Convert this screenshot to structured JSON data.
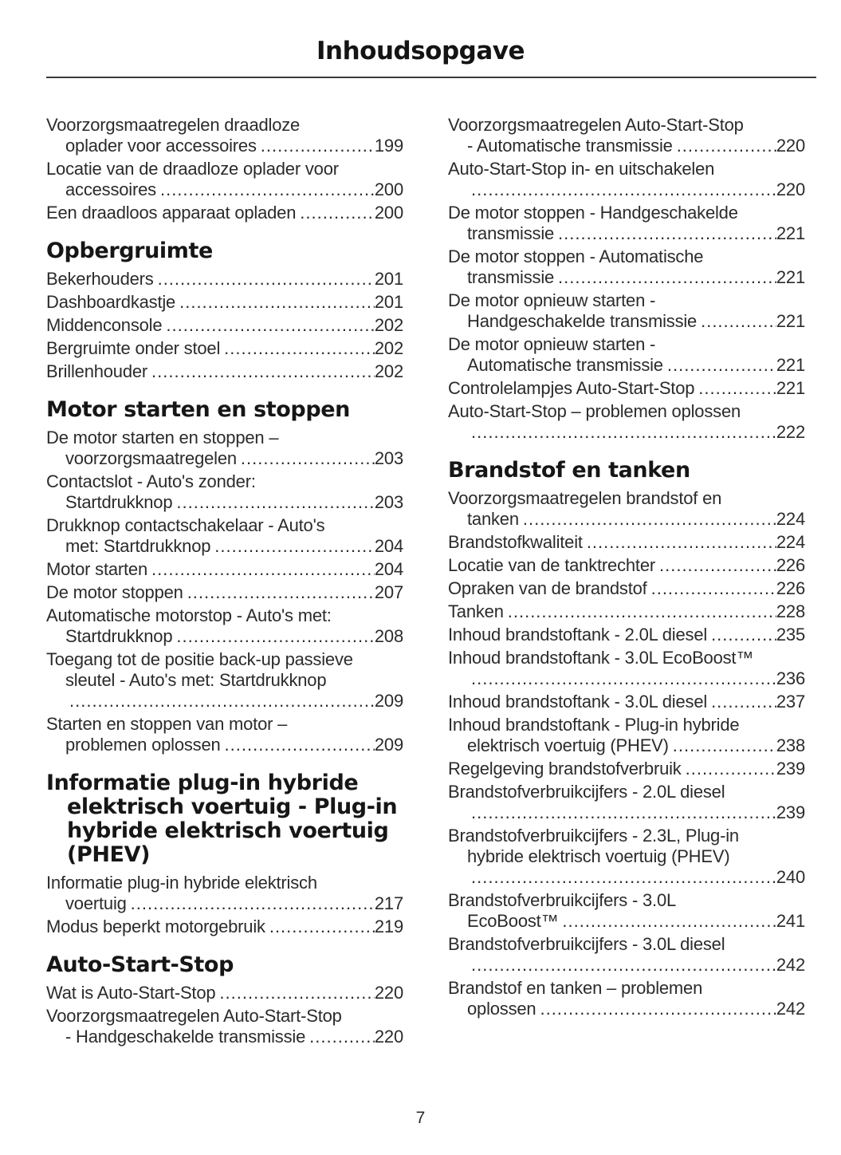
{
  "page": {
    "title": "Inhoudsopgave",
    "footer_page_number": "7"
  },
  "columns": [
    {
      "sections": [
        {
          "heading": null,
          "entries": [
            {
              "lines": [
                "Voorzorgsmaatregelen draadloze",
                "oplader voor accessoires"
              ],
              "page": "199"
            },
            {
              "lines": [
                "Locatie van de draadloze oplader voor",
                "accessoires"
              ],
              "page": "200"
            },
            {
              "lines": [
                "Een draadloos apparaat opladen"
              ],
              "page": "200"
            }
          ]
        },
        {
          "heading": [
            "Opbergruimte"
          ],
          "entries": [
            {
              "lines": [
                "Bekerhouders"
              ],
              "page": "201"
            },
            {
              "lines": [
                "Dashboardkastje"
              ],
              "page": "201"
            },
            {
              "lines": [
                "Middenconsole"
              ],
              "page": "202"
            },
            {
              "lines": [
                "Bergruimte onder stoel"
              ],
              "page": "202"
            },
            {
              "lines": [
                "Brillenhouder"
              ],
              "page": "202"
            }
          ]
        },
        {
          "heading": [
            "Motor starten en stoppen"
          ],
          "entries": [
            {
              "lines": [
                "De motor starten en stoppen –",
                "voorzorgsmaatregelen"
              ],
              "page": "203"
            },
            {
              "lines": [
                "Contactslot - Auto's zonder:",
                "Startdrukknop"
              ],
              "page": "203"
            },
            {
              "lines": [
                "Drukknop contactschakelaar - Auto's",
                "met: Startdrukknop"
              ],
              "page": "204"
            },
            {
              "lines": [
                "Motor starten"
              ],
              "page": "204"
            },
            {
              "lines": [
                "De motor stoppen"
              ],
              "page": "207"
            },
            {
              "lines": [
                "Automatische motorstop - Auto's met:",
                "Startdrukknop"
              ],
              "page": "208"
            },
            {
              "lines": [
                "Toegang tot de positie back-up passieve",
                "sleutel - Auto's met: Startdrukknop",
                ""
              ],
              "page": "209"
            },
            {
              "lines": [
                "Starten en stoppen van motor –",
                "problemen oplossen"
              ],
              "page": "209"
            }
          ]
        },
        {
          "heading": [
            "Informatie plug-in hybride",
            "elektrisch voertuig - Plug-in",
            "hybride elektrisch voertuig",
            "(PHEV)"
          ],
          "entries": [
            {
              "lines": [
                "Informatie plug-in hybride elektrisch",
                "voertuig"
              ],
              "page": "217"
            },
            {
              "lines": [
                "Modus beperkt motorgebruik"
              ],
              "page": "219"
            }
          ]
        },
        {
          "heading": [
            "Auto-Start-Stop"
          ],
          "entries": [
            {
              "lines": [
                "Wat is Auto-Start-Stop"
              ],
              "page": "220"
            },
            {
              "lines": [
                "Voorzorgsmaatregelen Auto-Start-Stop",
                "- Handgeschakelde transmissie"
              ],
              "page": "220"
            }
          ]
        }
      ]
    },
    {
      "sections": [
        {
          "heading": null,
          "entries": [
            {
              "lines": [
                "Voorzorgsmaatregelen Auto-Start-Stop",
                "- Automatische transmissie"
              ],
              "page": "220"
            },
            {
              "lines": [
                "Auto-Start-Stop in- en uitschakelen",
                ""
              ],
              "page": "220"
            },
            {
              "lines": [
                "De motor stoppen - Handgeschakelde",
                "transmissie"
              ],
              "page": "221"
            },
            {
              "lines": [
                "De motor stoppen - Automatische",
                "transmissie"
              ],
              "page": "221"
            },
            {
              "lines": [
                "De motor opnieuw starten -",
                "Handgeschakelde transmissie"
              ],
              "page": "221"
            },
            {
              "lines": [
                "De motor opnieuw starten -",
                "Automatische transmissie"
              ],
              "page": "221"
            },
            {
              "lines": [
                "Controlelampjes Auto-Start-Stop"
              ],
              "page": "221"
            },
            {
              "lines": [
                "Auto-Start-Stop – problemen oplossen",
                ""
              ],
              "page": "222"
            }
          ]
        },
        {
          "heading": [
            "Brandstof en tanken"
          ],
          "entries": [
            {
              "lines": [
                "Voorzorgsmaatregelen brandstof en",
                "tanken"
              ],
              "page": "224"
            },
            {
              "lines": [
                "Brandstofkwaliteit"
              ],
              "page": "224"
            },
            {
              "lines": [
                "Locatie van de tanktrechter"
              ],
              "page": "226"
            },
            {
              "lines": [
                "Opraken van de brandstof"
              ],
              "page": "226"
            },
            {
              "lines": [
                "Tanken"
              ],
              "page": "228"
            },
            {
              "lines": [
                "Inhoud brandstoftank - 2.0L diesel"
              ],
              "page": "235"
            },
            {
              "lines": [
                "Inhoud brandstoftank - 3.0L EcoBoost™",
                ""
              ],
              "page": "236"
            },
            {
              "lines": [
                "Inhoud brandstoftank - 3.0L diesel"
              ],
              "page": "237"
            },
            {
              "lines": [
                "Inhoud brandstoftank - Plug-in hybride",
                "elektrisch voertuig (PHEV)"
              ],
              "page": "238"
            },
            {
              "lines": [
                "Regelgeving brandstofverbruik"
              ],
              "page": "239"
            },
            {
              "lines": [
                "Brandstofverbruikcijfers - 2.0L diesel",
                ""
              ],
              "page": "239"
            },
            {
              "lines": [
                "Brandstofverbruikcijfers - 2.3L, Plug-in",
                "hybride elektrisch voertuig (PHEV)",
                ""
              ],
              "page": "240"
            },
            {
              "lines": [
                "Brandstofverbruikcijfers - 3.0L",
                "EcoBoost™"
              ],
              "page": "241"
            },
            {
              "lines": [
                "Brandstofverbruikcijfers - 3.0L diesel",
                ""
              ],
              "page": "242"
            },
            {
              "lines": [
                "Brandstof en tanken – problemen",
                "oplossen"
              ],
              "page": "242"
            }
          ]
        }
      ]
    }
  ]
}
